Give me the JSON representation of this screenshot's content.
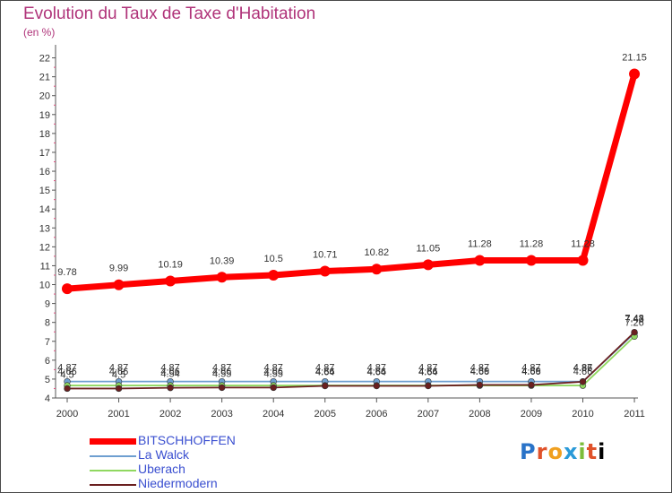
{
  "chart_data": {
    "type": "line",
    "title": "Evolution du Taux de Taxe d'Habitation",
    "subtitle": "(en %)",
    "x": [
      "2000",
      "2001",
      "2002",
      "2003",
      "2004",
      "2005",
      "2006",
      "2007",
      "2008",
      "2009",
      "2010",
      "2011"
    ],
    "ylim": [
      4,
      22
    ],
    "yticks": [
      "4",
      "5",
      "6",
      "7",
      "8",
      "9",
      "10",
      "11",
      "12",
      "13",
      "14",
      "15",
      "16",
      "17",
      "18",
      "19",
      "20",
      "21",
      "22"
    ],
    "series": [
      {
        "name": "BITSCHHOFFEN",
        "color": "#ff0000",
        "labels": [
          "9.78",
          "9.99",
          "10.19",
          "10.39",
          "10.5",
          "10.71",
          "10.82",
          "11.05",
          "11.28",
          "11.28",
          "11.28",
          "21.15"
        ],
        "values": [
          9.78,
          9.99,
          10.19,
          10.39,
          10.5,
          10.71,
          10.82,
          11.05,
          11.28,
          11.28,
          11.28,
          21.15
        ]
      },
      {
        "name": "La Walck",
        "color": "#6e9fd0",
        "labels": [
          "4.87",
          "4.87",
          "4.87",
          "4.87",
          "4.87",
          "4.87",
          "4.87",
          "4.87",
          "4.87",
          "4.87",
          "4.87",
          "7.43"
        ],
        "values": [
          4.87,
          4.87,
          4.87,
          4.87,
          4.87,
          4.87,
          4.87,
          4.87,
          4.87,
          4.87,
          4.87,
          7.43
        ]
      },
      {
        "name": "Uberach",
        "color": "#90d860",
        "labels": [
          "4.66",
          "4.66",
          "4.66",
          "4.66",
          "4.66",
          "4.66",
          "4.66",
          "4.66",
          "4.66",
          "4.66",
          "4.66",
          "7.26"
        ],
        "values": [
          4.66,
          4.66,
          4.66,
          4.66,
          4.66,
          4.66,
          4.66,
          4.66,
          4.66,
          4.66,
          4.66,
          7.26
        ]
      },
      {
        "name": "Niedermodern",
        "color": "#6a1f1f",
        "labels": [
          "4.5",
          "4.5",
          "4.54",
          "4.55",
          "4.55",
          "4.64",
          "4.64",
          "4.64",
          "4.69",
          "4.69",
          "4.86",
          "7.48"
        ],
        "values": [
          4.5,
          4.5,
          4.54,
          4.55,
          4.55,
          4.64,
          4.64,
          4.64,
          4.69,
          4.69,
          4.86,
          7.48
        ]
      }
    ],
    "legend_position": "bottom-left"
  },
  "logo": {
    "letters": [
      "P",
      "r",
      "o",
      "x",
      "i",
      "t",
      "i"
    ]
  }
}
